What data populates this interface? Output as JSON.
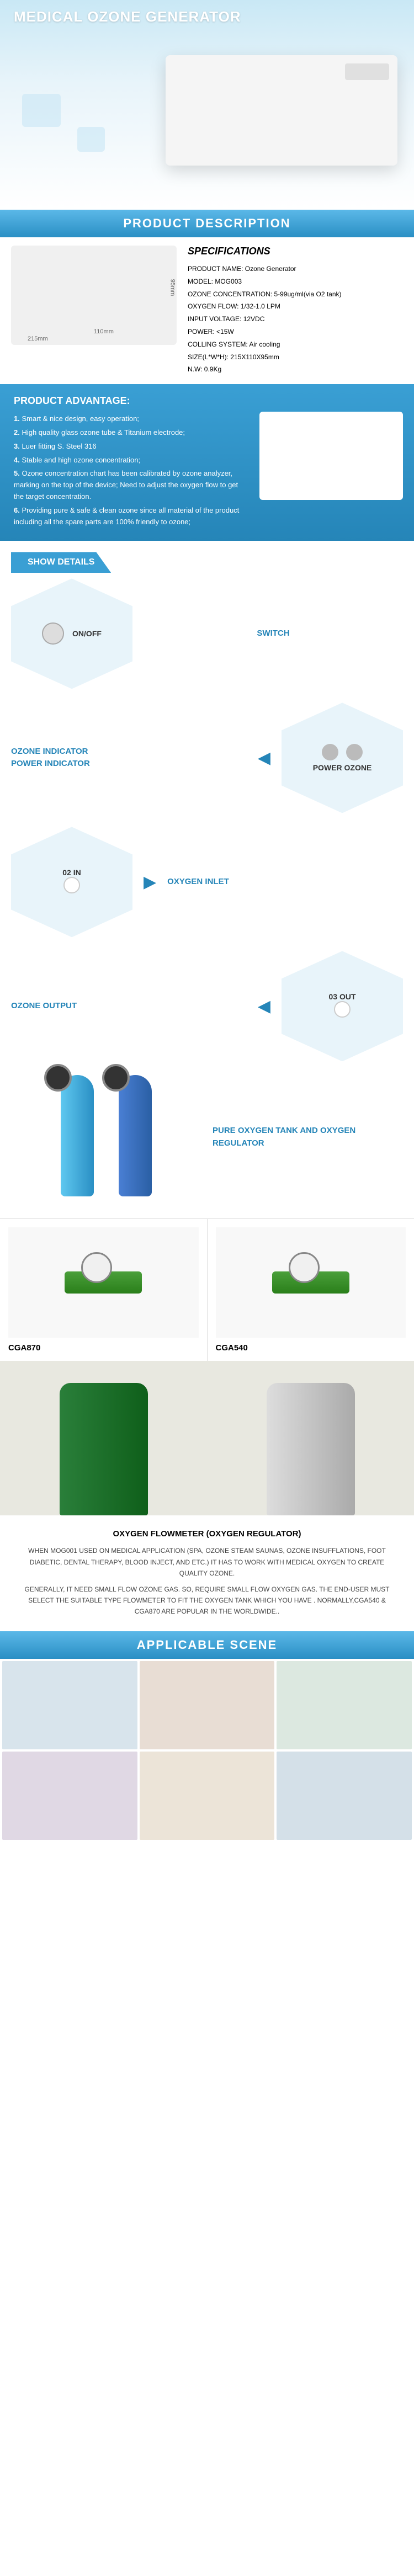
{
  "hero": {
    "title": "MEDICAL OZONE GENERATOR"
  },
  "sections": {
    "description": "PRODUCT DESCRIPTION",
    "applicable": "APPLICABLE SCENE"
  },
  "dimensions": {
    "w": "215mm",
    "d": "110mm",
    "h": "95mm"
  },
  "specs": {
    "title": "SPECIFICATIONS",
    "rows": [
      {
        "k": "PRODUCT NAME:",
        "v": "Ozone Generator"
      },
      {
        "k": "MODEL:",
        "v": "MOG003"
      },
      {
        "k": "OZONE CONCENTRATION:",
        "v": "5-99ug/ml(via O2 tank)"
      },
      {
        "k": "OXYGEN FLOW:",
        "v": "1/32-1.0 LPM"
      },
      {
        "k": "INPUT VOLTAGE:",
        "v": "12VDC"
      },
      {
        "k": "POWER:",
        "v": "<15W"
      },
      {
        "k": "COLLING SYSTEM:",
        "v": "Air cooling"
      },
      {
        "k": "SIZE(L*W*H):",
        "v": "215X110X95mm"
      },
      {
        "k": "N.W:",
        "v": "0.9Kg"
      }
    ]
  },
  "advantage": {
    "title": "PRODUCT ADVANTAGE:",
    "items": [
      "Smart & nice design, easy operation;",
      "High quality glass ozone tube & Titanium electrode;",
      "Luer fitting S. Steel 316",
      "Stable and high ozone concentration;",
      "Ozone concentration chart has been calibrated by ozone analyzer, marking on the top of the device; Need to adjust the oxygen flow to get the target concentration.",
      "Providing pure & safe & clean ozone since all material of the product including all the spare parts are 100% friendly to ozone;"
    ]
  },
  "show_details": "SHOW DETAILS",
  "details": [
    {
      "hex_text": "ON/OFF",
      "label": "SWITCH",
      "side": "right"
    },
    {
      "hex_text": "POWER  OZONE",
      "label": "OZONE INDICATOR\nPOWER INDICATOR",
      "side": "left"
    },
    {
      "hex_text": "02 IN",
      "label": "OXYGEN INLET",
      "side": "right"
    },
    {
      "hex_text": "03 OUT",
      "label": "OZONE OUTPUT",
      "side": "left"
    }
  ],
  "tank_label": "PURE OXYGEN TANK AND OXYGEN REGULATOR",
  "regulators": [
    {
      "name": "CGA870"
    },
    {
      "name": "CGA540"
    }
  ],
  "flowmeter": {
    "title": "OXYGEN FLOWMETER (OXYGEN REGULATOR)",
    "p1": "WHEN MOG001 USED ON MEDICAL APPLICATION (SPA, OZONE STEAM SAUNAS, OZONE INSUFFLATIONS, FOOT DIABETIC, DENTAL THERAPY, BLOOD INJECT, AND ETC.) IT HAS TO WORK WITH MEDICAL OXYGEN TO CREATE QUALITY OZONE.",
    "p2": "GENERALLY, IT NEED SMALL FLOW OZONE GAS. SO, REQUIRE SMALL FLOW OXYGEN GAS. THE END-USER MUST SELECT THE SUITABLE TYPE FLOWMETER TO FIT THE OXYGEN TANK WHICH YOU HAVE . NORMALLY,CGA540 & CGA870 ARE POPULAR IN THE WORLDWIDE.."
  },
  "scene_colors": [
    "#d8e4ec",
    "#e8ddd4",
    "#dce8e0",
    "#e0d8e4",
    "#ece4d8",
    "#d4e0e8"
  ]
}
